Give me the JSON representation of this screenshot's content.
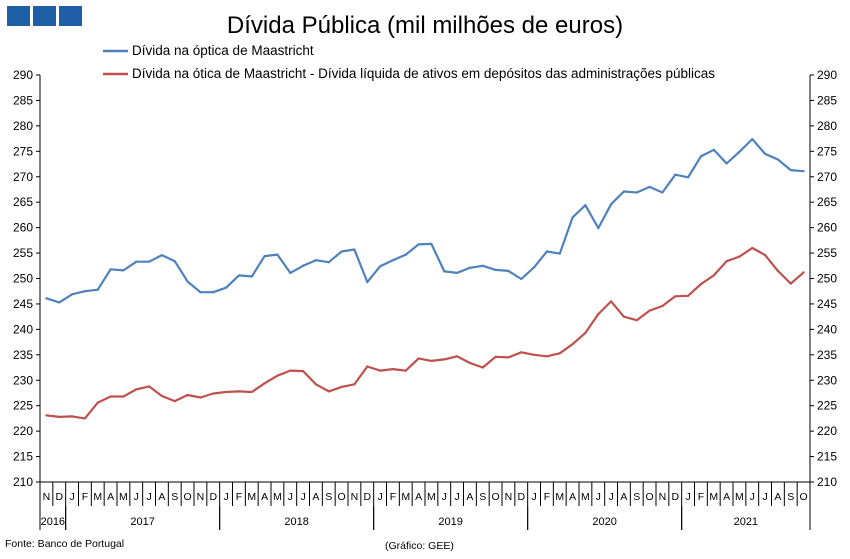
{
  "chart_data": {
    "type": "line",
    "title": "Dívida Pública (mil milhões de euros)",
    "source": "Fonte: Banco de Portugal",
    "credit": "(Gráfico: GEE)",
    "ylim": [
      210,
      290
    ],
    "y_ticks": [
      210,
      215,
      220,
      225,
      230,
      235,
      240,
      245,
      250,
      255,
      260,
      265,
      270,
      275,
      280,
      285,
      290
    ],
    "legend_position": "top",
    "grid": false,
    "month_labels": [
      "N",
      "D",
      "J",
      "F",
      "M",
      "A",
      "M",
      "J",
      "J",
      "A",
      "S",
      "O",
      "N",
      "D",
      "J",
      "F",
      "M",
      "A",
      "M",
      "J",
      "J",
      "A",
      "S",
      "O",
      "N",
      "D",
      "J",
      "F",
      "M",
      "A",
      "M",
      "J",
      "J",
      "A",
      "S",
      "O",
      "N",
      "D",
      "J",
      "F",
      "M",
      "A",
      "M",
      "J",
      "J",
      "A",
      "S",
      "O",
      "N",
      "D",
      "J",
      "F",
      "M",
      "A",
      "M",
      "J",
      "J",
      "A",
      "S",
      "O"
    ],
    "year_groups": [
      {
        "label": "2016",
        "start": 0,
        "count": 2
      },
      {
        "label": "2017",
        "start": 2,
        "count": 12
      },
      {
        "label": "2018",
        "start": 14,
        "count": 12
      },
      {
        "label": "2019",
        "start": 26,
        "count": 12
      },
      {
        "label": "2020",
        "start": 38,
        "count": 12
      },
      {
        "label": "2021",
        "start": 50,
        "count": 10
      }
    ],
    "series": [
      {
        "name": "Dívida na óptica de Maastricht",
        "color": "#4f81bd",
        "values": [
          246.1,
          245.3,
          246.9,
          247.5,
          247.8,
          251.8,
          251.6,
          253.3,
          253.3,
          254.6,
          253.4,
          249.4,
          247.3,
          247.3,
          248.2,
          250.6,
          250.4,
          254.4,
          254.7,
          251.1,
          252.5,
          253.6,
          253.2,
          255.3,
          255.7,
          249.3,
          252.4,
          253.6,
          254.7,
          256.7,
          256.8,
          251.4,
          251.1,
          252.1,
          252.5,
          251.7,
          251.5,
          249.9,
          252.2,
          255.3,
          254.9,
          262.0,
          264.4,
          259.9,
          264.6,
          267.1,
          266.9,
          268.0,
          266.9,
          270.4,
          269.9,
          274.0,
          275.3,
          272.6,
          274.9,
          277.4,
          274.5,
          273.4,
          271.3,
          271.1
        ]
      },
      {
        "name": "Dívida na ótica de Maastricht - Dívida líquida de ativos em depósitos das administrações públicas",
        "color": "#c0504d",
        "values": [
          223.1,
          222.8,
          222.9,
          222.5,
          225.6,
          226.8,
          226.8,
          228.2,
          228.8,
          226.9,
          225.9,
          227.1,
          226.6,
          227.4,
          227.7,
          227.8,
          227.7,
          229.4,
          230.9,
          231.9,
          231.8,
          229.2,
          227.8,
          228.7,
          229.2,
          232.7,
          231.9,
          232.2,
          231.9,
          234.3,
          233.8,
          234.1,
          234.7,
          233.4,
          232.5,
          234.6,
          234.5,
          235.5,
          235.0,
          234.7,
          235.3,
          237.1,
          239.3,
          243.0,
          245.5,
          242.5,
          241.8,
          243.7,
          244.6,
          246.5,
          246.6,
          248.9,
          250.6,
          253.4,
          254.3,
          256.0,
          254.6,
          251.5,
          249.0,
          251.2
        ]
      }
    ]
  }
}
